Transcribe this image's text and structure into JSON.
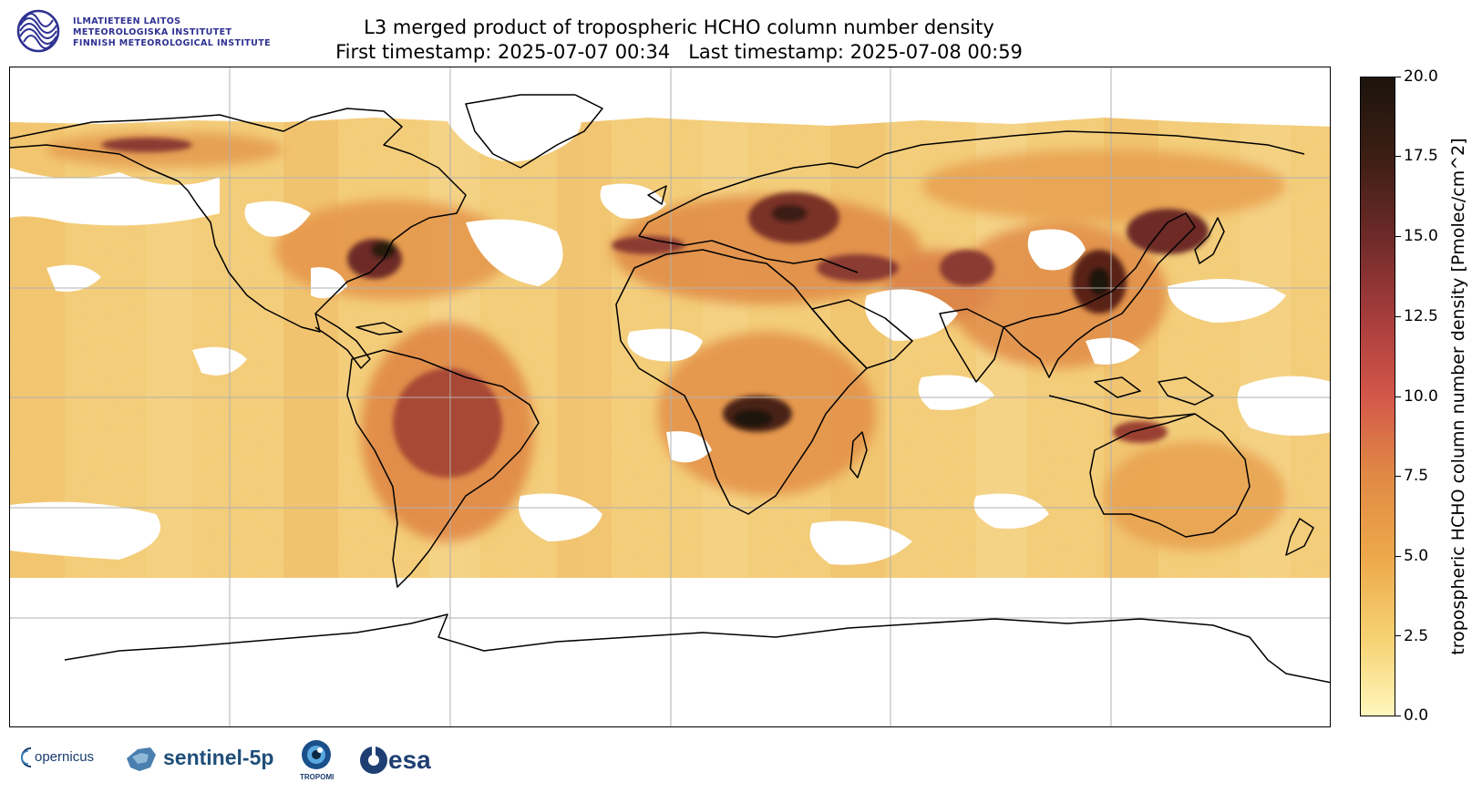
{
  "header": {
    "institute_lines": [
      "ILMATIETEEN LAITOS",
      "METEOROLOGISKA INSTITUTET",
      "FINNISH METEOROLOGICAL INSTITUTE"
    ],
    "title_line1": "L3 merged product of tropospheric HCHO column number density",
    "title_line2": "First timestamp: 2025-07-07 00:34   Last timestamp: 2025-07-08 00:59"
  },
  "colorbar": {
    "label": "tropospheric HCHO column number density [Pmolec/cm^2]",
    "min": 0.0,
    "max": 20.0,
    "ticks": [
      "0.0",
      "2.5",
      "5.0",
      "7.5",
      "10.0",
      "12.5",
      "15.0",
      "17.5",
      "20.0"
    ],
    "colors": [
      "#fff7bc",
      "#f6d070",
      "#eda84a",
      "#e08a45",
      "#d4574a",
      "#a63c3c",
      "#6d2a28",
      "#3d1e14",
      "#1c140c"
    ]
  },
  "map": {
    "projection": "plate-carree",
    "gridlines": true,
    "hotspots_note_colors": {
      "low": "#f6d37a",
      "mid": "#e48a3c",
      "high": "#5a2418"
    }
  },
  "footer": {
    "logos": [
      "opernicus",
      "sentinel-5p",
      "TROPOMI",
      "esa"
    ]
  }
}
